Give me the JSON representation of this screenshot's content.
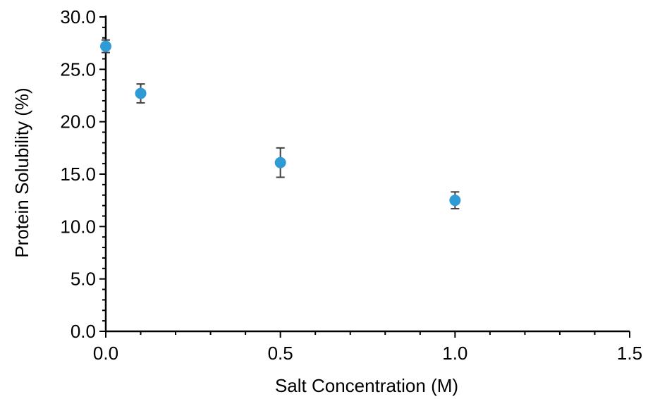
{
  "chart_data": {
    "type": "scatter",
    "xlabel": "Salt Concentration (M)",
    "ylabel": "Protein Solubility  (%)",
    "xlim": [
      0,
      1.5
    ],
    "ylim": [
      0,
      30
    ],
    "x_ticks": [
      "0.0",
      "0.5",
      "1.0",
      "1.5"
    ],
    "y_ticks": [
      "0.0",
      "5.0",
      "10.0",
      "15.0",
      "20.0",
      "25.0",
      "30.0"
    ],
    "grid": false,
    "legend": "none",
    "series": [
      {
        "x": [
          0.0,
          0.1,
          0.5,
          1.0
        ],
        "y": [
          27.2,
          22.7,
          16.1,
          12.5
        ],
        "error": [
          0.6,
          0.9,
          1.4,
          0.8
        ],
        "color": "#2E9BD6"
      }
    ]
  },
  "colors": {
    "marker": "#2E9BD6",
    "error_bar": "#404040",
    "axis": "#000000"
  }
}
